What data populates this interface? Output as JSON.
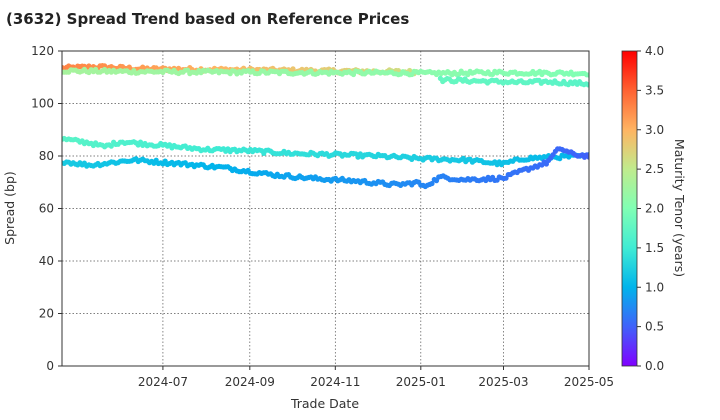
{
  "chart_data": {
    "type": "scatter",
    "title": "(3632)   Spread Trend based on Reference Prices",
    "xlabel": "Trade Date",
    "ylabel": "Spread (bp)",
    "ylim": [
      0,
      120
    ],
    "yticks": [
      0,
      20,
      40,
      60,
      80,
      100,
      120
    ],
    "xlim": [
      "2024-04-20",
      "2025-05-01"
    ],
    "xticks": [
      "2024-07",
      "2024-09",
      "2024-11",
      "2025-01",
      "2025-03",
      "2025-05"
    ],
    "grid": true,
    "colorbar": {
      "label": "Maturity Tenor (years)",
      "range": [
        0.0,
        4.0
      ],
      "ticks": [
        "0.0",
        "0.5",
        "1.0",
        "1.5",
        "2.0",
        "2.5",
        "3.0",
        "3.5",
        "4.0"
      ],
      "colormap": "rainbow"
    },
    "series": [
      {
        "tenor_start": 3.3,
        "tenor_end": 2.6,
        "points": [
          [
            "2024-04-20",
            113.5
          ],
          [
            "2024-05-15",
            114.0
          ],
          [
            "2024-06-15",
            113.2
          ],
          [
            "2024-08-01",
            113.0
          ],
          [
            "2024-10-01",
            112.6
          ],
          [
            "2024-11-15",
            112.3
          ],
          [
            "2024-12-31",
            112.0
          ]
        ]
      },
      {
        "tenor_start": 2.3,
        "tenor_end": 2.0,
        "points": [
          [
            "2024-04-20",
            112.5
          ],
          [
            "2024-06-01",
            112.2
          ],
          [
            "2024-08-01",
            112.0
          ],
          [
            "2024-10-01",
            111.8
          ],
          [
            "2024-12-31",
            111.6
          ],
          [
            "2025-01-02",
            111.5
          ],
          [
            "2025-03-01",
            111.8
          ],
          [
            "2025-05-01",
            111.5
          ]
        ]
      },
      {
        "tenor_start": 1.8,
        "tenor_end": 1.7,
        "points": [
          [
            "2025-01-15",
            109.0
          ],
          [
            "2025-02-15",
            108.5
          ],
          [
            "2025-03-15",
            108.0
          ],
          [
            "2025-04-01",
            108.3
          ],
          [
            "2025-05-01",
            107.5
          ]
        ]
      },
      {
        "tenor_start": 1.7,
        "tenor_end": 1.0,
        "points": [
          [
            "2024-04-20",
            86.5
          ],
          [
            "2024-05-10",
            85.0
          ],
          [
            "2024-05-20",
            83.5
          ],
          [
            "2024-06-01",
            85.5
          ],
          [
            "2024-07-01",
            84.0
          ],
          [
            "2024-08-01",
            82.5
          ],
          [
            "2024-09-01",
            82.0
          ],
          [
            "2024-10-01",
            81.0
          ],
          [
            "2024-11-01",
            80.5
          ],
          [
            "2024-12-01",
            80.0
          ],
          [
            "2024-12-31",
            79.0
          ],
          [
            "2025-01-02",
            79.0
          ],
          [
            "2025-02-01",
            78.5
          ],
          [
            "2025-03-01",
            77.0
          ],
          [
            "2025-03-15",
            79.0
          ],
          [
            "2025-04-01",
            79.5
          ],
          [
            "2025-05-01",
            80.0
          ]
        ]
      },
      {
        "tenor_start": 1.2,
        "tenor_end": 0.5,
        "points": [
          [
            "2024-04-20",
            78.0
          ],
          [
            "2024-05-10",
            76.5
          ],
          [
            "2024-06-10",
            78.5
          ],
          [
            "2024-07-15",
            77.0
          ],
          [
            "2024-08-15",
            75.5
          ],
          [
            "2024-09-15",
            73.0
          ],
          [
            "2024-10-15",
            71.5
          ],
          [
            "2024-11-15",
            70.5
          ],
          [
            "2024-12-15",
            69.0
          ],
          [
            "2024-12-31",
            70.0
          ],
          [
            "2025-01-02",
            68.0
          ],
          [
            "2025-01-15",
            72.0
          ],
          [
            "2025-02-01",
            71.0
          ],
          [
            "2025-03-01",
            71.5
          ],
          [
            "2025-03-15",
            74.5
          ],
          [
            "2025-04-01",
            77.5
          ],
          [
            "2025-04-10",
            83.0
          ],
          [
            "2025-04-20",
            80.5
          ],
          [
            "2025-05-01",
            80.0
          ]
        ]
      }
    ]
  }
}
